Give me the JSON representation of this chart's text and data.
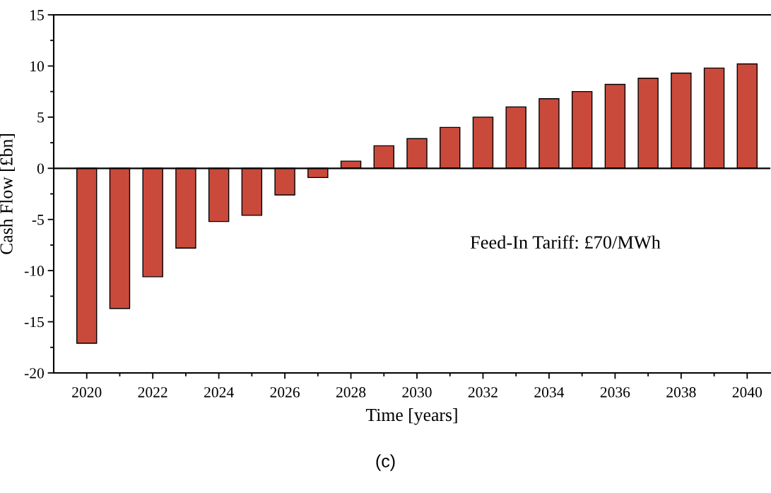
{
  "chart_data": {
    "type": "bar",
    "xlabel": "Time [years]",
    "ylabel": "Cash Flow [£bn]",
    "x": [
      2020,
      2021,
      2022,
      2023,
      2024,
      2025,
      2026,
      2027,
      2028,
      2029,
      2030,
      2031,
      2032,
      2033,
      2034,
      2035,
      2036,
      2037,
      2038,
      2039,
      2040
    ],
    "values": [
      -17.1,
      -13.7,
      -10.6,
      -7.8,
      -5.2,
      -4.6,
      -2.6,
      -0.9,
      0.7,
      2.2,
      2.9,
      4.0,
      5.0,
      6.0,
      6.8,
      7.5,
      8.2,
      8.8,
      9.3,
      9.8,
      10.2
    ],
    "color": "#c94a3b",
    "xlim": [
      2019,
      2040.7
    ],
    "xticks": [
      2020,
      {
        "value": 2021,
        "label": null
      },
      2022,
      {
        "value": 2023,
        "label": null
      },
      2024,
      {
        "value": 2025,
        "label": null
      },
      2026,
      {
        "value": 2027,
        "label": null
      },
      2028,
      {
        "value": 2029,
        "label": null
      },
      2030,
      {
        "value": 2031,
        "label": null
      },
      2032,
      {
        "value": 2033,
        "label": null
      },
      2034,
      {
        "value": 2035,
        "label": null
      },
      2036,
      {
        "value": 2037,
        "label": null
      },
      2038,
      {
        "value": 2039,
        "label": null
      },
      2040
    ],
    "ylim": [
      -20,
      15
    ],
    "yticks": [
      -20,
      {
        "value": -17.5,
        "label": null
      },
      -15,
      {
        "value": -12.5,
        "label": null
      },
      -10,
      {
        "value": -7.5,
        "label": null
      },
      -5,
      {
        "value": -2.5,
        "label": null
      },
      0,
      {
        "value": 2.5,
        "label": null
      },
      5,
      {
        "value": 7.5,
        "label": null
      },
      10,
      {
        "value": 12.5,
        "label": null
      },
      15
    ],
    "ref_lines": [
      {
        "axis": "y",
        "value": 0,
        "color": "#000000"
      }
    ],
    "annotations": [
      "Feed-In Tariff: £70/MWh",
      "(c)"
    ]
  }
}
